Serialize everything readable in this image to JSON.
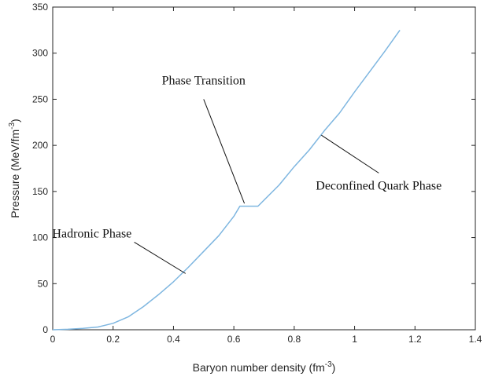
{
  "chart_data": {
    "type": "line",
    "title": "",
    "xlabel": "Baryon number density (fm",
    "xlabel_sup": "-3",
    "xlabel_suffix": ")",
    "ylabel": "Pressure (MeV/fm",
    "ylabel_sup": "-3",
    "ylabel_suffix": ")",
    "xlim": [
      0,
      1.4
    ],
    "ylim": [
      0,
      350
    ],
    "xticks": [
      0,
      0.2,
      0.4,
      0.6,
      0.8,
      1,
      1.2,
      1.4
    ],
    "xtick_labels": [
      "0",
      "0.2",
      "0.4",
      "0.6",
      "0.8",
      "1",
      "1.2",
      "1.4"
    ],
    "yticks": [
      0,
      50,
      100,
      150,
      200,
      250,
      300,
      350
    ],
    "ytick_labels": [
      "0",
      "50",
      "100",
      "150",
      "200",
      "250",
      "300",
      "350"
    ],
    "grid": false,
    "box": true,
    "series": [
      {
        "color": "#7eb6e0",
        "x": [
          0,
          0.05,
          0.1,
          0.15,
          0.2,
          0.25,
          0.3,
          0.35,
          0.4,
          0.45,
          0.5,
          0.55,
          0.6,
          0.62,
          0.68,
          0.75,
          0.8,
          0.85,
          0.9,
          0.95,
          1.0,
          1.05,
          1.1,
          1.15
        ],
        "y": [
          0,
          0.5,
          1.5,
          3,
          7,
          14,
          25,
          38,
          52,
          68,
          85,
          102,
          123,
          134,
          134,
          157,
          177,
          195,
          216,
          235,
          258,
          280,
          302,
          325
        ]
      }
    ],
    "annotations": [
      {
        "text": "Phase Transition",
        "text_at": [
          0.5,
          266
        ],
        "arrow_from": [
          0.5,
          250
        ],
        "arrow_to": [
          0.635,
          137
        ]
      },
      {
        "text": "Hadronic Phase",
        "text_at": [
          0.13,
          100
        ],
        "arrow_from": [
          0.27,
          95
        ],
        "arrow_to": [
          0.44,
          61
        ]
      },
      {
        "text": "Deconfined Quark Phase",
        "text_at": [
          1.08,
          152
        ],
        "arrow_from": [
          1.08,
          170
        ],
        "arrow_to": [
          0.89,
          211
        ]
      }
    ]
  }
}
